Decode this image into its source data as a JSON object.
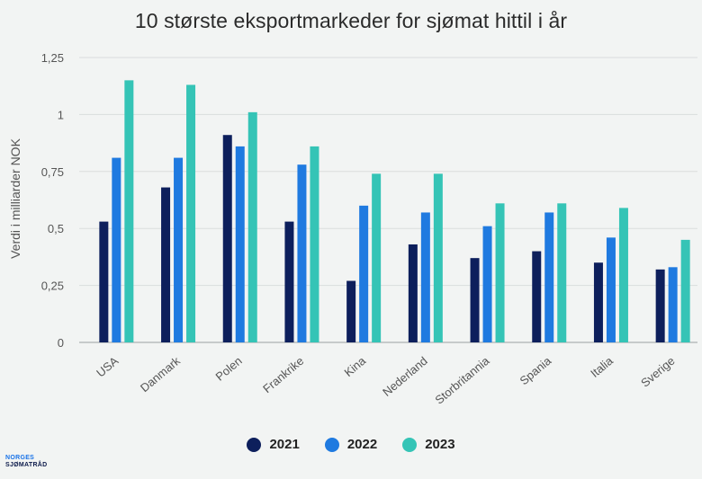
{
  "chart_data": {
    "type": "bar",
    "title": "10 største eksportmarkeder for sjømat hittil i år",
    "ylabel": "Verdi i milliarder NOK",
    "ylim": [
      0,
      1.25
    ],
    "yticks": [
      "0",
      "0,25",
      "0,5",
      "0,75",
      "1",
      "1,25"
    ],
    "ytick_values": [
      0,
      0.25,
      0.5,
      0.75,
      1,
      1.25
    ],
    "grid": true,
    "legend_position": "bottom",
    "categories": [
      "USA",
      "Danmark",
      "Polen",
      "Frankrike",
      "Kina",
      "Nederland",
      "Storbritannia",
      "Spania",
      "Italia",
      "Sverige"
    ],
    "series": [
      {
        "name": "2021",
        "color": "#0d1f5c",
        "values": [
          0.53,
          0.68,
          0.91,
          0.53,
          0.27,
          0.43,
          0.37,
          0.4,
          0.35,
          0.32
        ]
      },
      {
        "name": "2022",
        "color": "#1f7ae0",
        "values": [
          0.81,
          0.81,
          0.86,
          0.78,
          0.6,
          0.57,
          0.51,
          0.57,
          0.46,
          0.33
        ]
      },
      {
        "name": "2023",
        "color": "#35c4b6",
        "values": [
          1.15,
          1.13,
          1.01,
          0.86,
          0.74,
          0.74,
          0.61,
          0.61,
          0.59,
          0.45
        ]
      }
    ]
  },
  "logo": {
    "line1": "NORGES",
    "line2": "SJØMATRÅD"
  }
}
